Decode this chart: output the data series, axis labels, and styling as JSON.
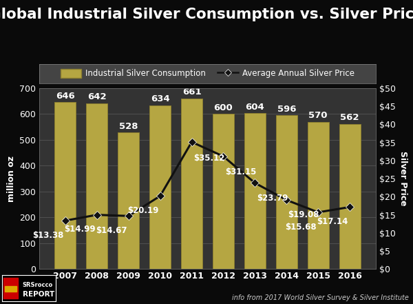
{
  "years": [
    2007,
    2008,
    2009,
    2010,
    2011,
    2012,
    2013,
    2014,
    2015,
    2016
  ],
  "consumption": [
    646,
    642,
    528,
    634,
    661,
    600,
    604,
    596,
    570,
    562
  ],
  "prices": [
    13.38,
    14.99,
    14.67,
    20.19,
    35.12,
    31.15,
    23.79,
    19.08,
    15.68,
    17.14
  ],
  "bar_color": "#b5a642",
  "bar_edge_color": "#8a7d30",
  "line_color": "#111111",
  "marker_color": "#111111",
  "background_color": "#0a0a0a",
  "plot_bg_color": "#333333",
  "legend_bg_color": "#444444",
  "text_color": "#ffffff",
  "title": "Global Industrial Silver Consumption vs. Silver Price",
  "ylabel_left": "million oz",
  "ylabel_right": "Silver Price",
  "ylim_left": [
    0,
    700
  ],
  "ylim_right": [
    0,
    50
  ],
  "yticks_left": [
    0,
    100,
    200,
    300,
    400,
    500,
    600,
    700
  ],
  "yticks_right": [
    0,
    5,
    10,
    15,
    20,
    25,
    30,
    35,
    40,
    45,
    50
  ],
  "ytick_right_labels": [
    "$0",
    "$5",
    "$10",
    "$15",
    "$20",
    "$25",
    "$30",
    "$35",
    "$40",
    "$45",
    "$50"
  ],
  "legend_bar_label": "Industrial Silver Consumption",
  "legend_line_label": "Average Annual Silver Price",
  "footer_right": "info from 2017 World Silver Survey & Silver Institute",
  "title_fontsize": 15.5,
  "label_fontsize": 9,
  "tick_fontsize": 9,
  "bar_label_fontsize": 9.5,
  "price_label_fontsize": 8.5
}
